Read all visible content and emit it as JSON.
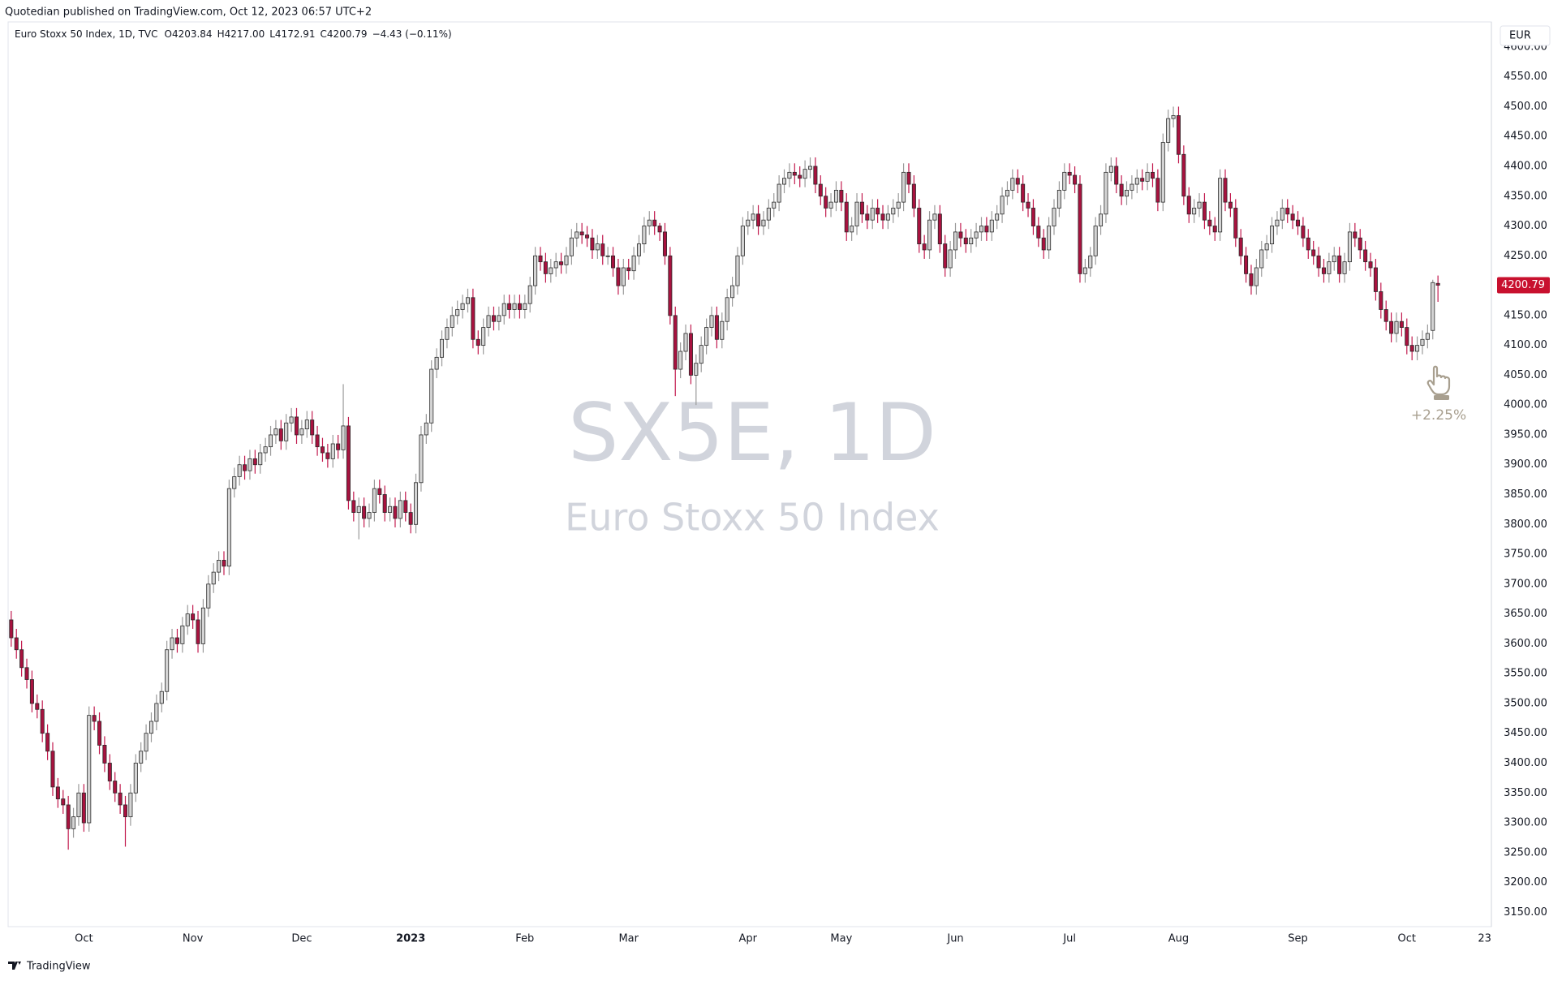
{
  "header": "Quotedian published on TradingView.com, Oct 12, 2023 06:57 UTC+2",
  "footer": "TradingView",
  "chart_data": {
    "type": "candlestick",
    "title": "Euro Stoxx 50 Index, 1D, TVC",
    "ohlc_legend": [
      "O4203.84",
      "H4217.00",
      "L4172.91",
      "C4200.79",
      "−4.43 (−0.11%)"
    ],
    "watermark": [
      "SX5E, 1D",
      "Euro Stoxx 50 Index"
    ],
    "currency": "EUR",
    "last_price": 4200.79,
    "annotation": "+2.25%",
    "up_color": "#d4d4d4",
    "down_color": "#a8123f",
    "border_color": "#2a2a2a",
    "up_wick_color": "#9a9a9a",
    "down_wick_color": "#c21a4e",
    "last_price_color": "#c8102e",
    "grid": false,
    "open": [
      3640,
      3610,
      3590,
      3560,
      3540,
      3500,
      3490,
      3450,
      3420,
      3360,
      3340,
      3330,
      3290,
      3310,
      3350,
      3300,
      3480,
      3470,
      3430,
      3400,
      3370,
      3350,
      3330,
      3310,
      3350,
      3400,
      3420,
      3450,
      3470,
      3500,
      3520,
      3590,
      3610,
      3600,
      3630,
      3650,
      3640,
      3600,
      3660,
      3700,
      3720,
      3740,
      3730,
      3860,
      3880,
      3900,
      3890,
      3910,
      3900,
      3920,
      3930,
      3950,
      3960,
      3940,
      3970,
      3980,
      3950,
      3960,
      3975,
      3950,
      3930,
      3920,
      3910,
      3935,
      3925,
      3965,
      3840,
      3820,
      3830,
      3810,
      3820,
      3860,
      3850,
      3820,
      3830,
      3810,
      3840,
      3820,
      3800,
      3870,
      3950,
      3970,
      4060,
      4080,
      4110,
      4130,
      4150,
      4160,
      4170,
      4180,
      4110,
      4100,
      4130,
      4150,
      4140,
      4150,
      4170,
      4160,
      4170,
      4160,
      4170,
      4200,
      4250,
      4240,
      4220,
      4230,
      4240,
      4235,
      4250,
      4280,
      4290,
      4285,
      4280,
      4260,
      4270,
      4250,
      4250,
      4230,
      4200,
      4230,
      4225,
      4250,
      4270,
      4300,
      4310,
      4300,
      4290,
      4250,
      4150,
      4060,
      4090,
      4120,
      4050,
      4070,
      4100,
      4130,
      4150,
      4110,
      4140,
      4180,
      4200,
      4250,
      4300,
      4310,
      4320,
      4300,
      4310,
      4330,
      4340,
      4370,
      4380,
      4390,
      4385,
      4380,
      4395,
      4400,
      4370,
      4350,
      4330,
      4340,
      4360,
      4340,
      4290,
      4300,
      4340,
      4320,
      4310,
      4330,
      4320,
      4310,
      4320,
      4330,
      4340,
      4390,
      4370,
      4330,
      4270,
      4260,
      4310,
      4320,
      4270,
      4230,
      4260,
      4290,
      4280,
      4270,
      4280,
      4290,
      4300,
      4290,
      4310,
      4320,
      4350,
      4360,
      4380,
      4370,
      4340,
      4330,
      4300,
      4280,
      4260,
      4300,
      4330,
      4360,
      4390,
      4385,
      4370,
      4220,
      4230,
      4250,
      4300,
      4320,
      4390,
      4400,
      4370,
      4350,
      4360,
      4370,
      4380,
      4375,
      4390,
      4380,
      4340,
      4440,
      4480,
      4485,
      4420,
      4350,
      4320,
      4330,
      4340,
      4310,
      4300,
      4290,
      4380,
      4340,
      4330,
      4280,
      4250,
      4220,
      4200,
      4230,
      4260,
      4270,
      4300,
      4310,
      4330,
      4320,
      4310,
      4300,
      4280,
      4260,
      4250,
      4230,
      4220,
      4240,
      4250,
      4220,
      4240,
      4290,
      4280,
      4260,
      4240,
      4230,
      4190,
      4160,
      4140,
      4120,
      4140,
      4130,
      4100,
      4090,
      4100,
      4110,
      4125,
      4203.84
    ],
    "high": [
      3655,
      3625,
      3605,
      3575,
      3555,
      3515,
      3505,
      3465,
      3435,
      3375,
      3355,
      3345,
      3325,
      3365,
      3365,
      3495,
      3495,
      3485,
      3445,
      3415,
      3385,
      3365,
      3345,
      3365,
      3415,
      3435,
      3465,
      3485,
      3515,
      3535,
      3605,
      3625,
      3625,
      3645,
      3665,
      3665,
      3655,
      3675,
      3715,
      3735,
      3755,
      3755,
      3875,
      3895,
      3915,
      3915,
      3925,
      3925,
      3935,
      3945,
      3965,
      3975,
      3975,
      3985,
      3995,
      3995,
      3975,
      3990,
      3990,
      3965,
      3945,
      3935,
      3950,
      3950,
      4035,
      3980,
      3855,
      3845,
      3845,
      3835,
      3875,
      3875,
      3865,
      3845,
      3845,
      3855,
      3855,
      3835,
      3885,
      3965,
      3985,
      4075,
      4095,
      4125,
      4145,
      4165,
      4175,
      4185,
      4195,
      4195,
      4125,
      4145,
      4165,
      4165,
      4165,
      4185,
      4185,
      4185,
      4185,
      4185,
      4215,
      4265,
      4265,
      4255,
      4245,
      4255,
      4255,
      4265,
      4295,
      4305,
      4305,
      4300,
      4295,
      4285,
      4285,
      4265,
      4265,
      4245,
      4245,
      4245,
      4265,
      4285,
      4315,
      4325,
      4325,
      4305,
      4305,
      4265,
      4165,
      4105,
      4135,
      4135,
      4085,
      4115,
      4145,
      4165,
      4165,
      4155,
      4195,
      4215,
      4265,
      4315,
      4325,
      4335,
      4335,
      4325,
      4345,
      4355,
      4385,
      4395,
      4405,
      4405,
      4400,
      4410,
      4415,
      4415,
      4385,
      4365,
      4355,
      4375,
      4375,
      4355,
      4315,
      4355,
      4355,
      4335,
      4345,
      4345,
      4335,
      4335,
      4345,
      4355,
      4405,
      4405,
      4385,
      4345,
      4285,
      4325,
      4335,
      4335,
      4285,
      4275,
      4305,
      4305,
      4295,
      4295,
      4305,
      4315,
      4315,
      4325,
      4335,
      4365,
      4375,
      4395,
      4395,
      4385,
      4355,
      4345,
      4315,
      4295,
      4315,
      4345,
      4375,
      4405,
      4405,
      4400,
      4385,
      4245,
      4265,
      4315,
      4335,
      4405,
      4415,
      4415,
      4385,
      4375,
      4385,
      4395,
      4395,
      4405,
      4405,
      4395,
      4455,
      4495,
      4500,
      4500,
      4435,
      4365,
      4345,
      4355,
      4355,
      4325,
      4315,
      4395,
      4395,
      4355,
      4345,
      4295,
      4265,
      4235,
      4245,
      4275,
      4285,
      4315,
      4325,
      4345,
      4345,
      4335,
      4325,
      4315,
      4295,
      4275,
      4265,
      4245,
      4255,
      4265,
      4265,
      4255,
      4305,
      4305,
      4295,
      4275,
      4255,
      4245,
      4205,
      4175,
      4155,
      4155,
      4155,
      4145,
      4115,
      4115,
      4125,
      4135,
      4210,
      4217
    ],
    "low": [
      3595,
      3575,
      3545,
      3525,
      3485,
      3475,
      3435,
      3405,
      3345,
      3325,
      3315,
      3255,
      3275,
      3295,
      3285,
      3285,
      3455,
      3415,
      3385,
      3355,
      3335,
      3315,
      3260,
      3295,
      3335,
      3385,
      3405,
      3435,
      3455,
      3485,
      3505,
      3575,
      3585,
      3585,
      3615,
      3625,
      3585,
      3585,
      3645,
      3685,
      3705,
      3715,
      3715,
      3845,
      3865,
      3875,
      3875,
      3885,
      3885,
      3905,
      3915,
      3935,
      3925,
      3925,
      3955,
      3935,
      3935,
      3945,
      3935,
      3915,
      3905,
      3895,
      3895,
      3910,
      3910,
      3825,
      3805,
      3775,
      3795,
      3795,
      3805,
      3835,
      3805,
      3805,
      3795,
      3795,
      3805,
      3785,
      3785,
      3855,
      3935,
      3955,
      4045,
      4065,
      4095,
      4115,
      4135,
      4145,
      4155,
      4095,
      4085,
      4085,
      4115,
      4125,
      4125,
      4135,
      4145,
      4145,
      4145,
      4145,
      4155,
      4185,
      4225,
      4205,
      4205,
      4215,
      4220,
      4220,
      4235,
      4265,
      4270,
      4265,
      4245,
      4245,
      4235,
      4235,
      4215,
      4185,
      4185,
      4210,
      4210,
      4235,
      4255,
      4285,
      4285,
      4275,
      4235,
      4135,
      4015,
      4045,
      4075,
      4035,
      4000,
      4055,
      4085,
      4115,
      4095,
      4095,
      4125,
      4165,
      4185,
      4235,
      4285,
      4295,
      4285,
      4285,
      4295,
      4315,
      4325,
      4355,
      4365,
      4370,
      4365,
      4365,
      4380,
      4355,
      4335,
      4315,
      4315,
      4325,
      4325,
      4275,
      4275,
      4285,
      4305,
      4295,
      4295,
      4305,
      4295,
      4295,
      4305,
      4315,
      4325,
      4355,
      4315,
      4255,
      4245,
      4245,
      4295,
      4255,
      4215,
      4215,
      4245,
      4265,
      4255,
      4255,
      4265,
      4275,
      4275,
      4275,
      4295,
      4305,
      4335,
      4345,
      4355,
      4325,
      4315,
      4285,
      4265,
      4245,
      4245,
      4285,
      4315,
      4345,
      4370,
      4355,
      4205,
      4205,
      4215,
      4235,
      4285,
      4305,
      4375,
      4355,
      4335,
      4335,
      4345,
      4355,
      4360,
      4360,
      4365,
      4325,
      4325,
      4425,
      4465,
      4405,
      4335,
      4305,
      4305,
      4315,
      4295,
      4285,
      4275,
      4275,
      4325,
      4315,
      4265,
      4235,
      4205,
      4185,
      4185,
      4215,
      4245,
      4255,
      4285,
      4295,
      4305,
      4295,
      4285,
      4265,
      4245,
      4235,
      4215,
      4205,
      4205,
      4225,
      4205,
      4205,
      4225,
      4265,
      4245,
      4225,
      4215,
      4175,
      4145,
      4125,
      4105,
      4105,
      4115,
      4085,
      4075,
      4075,
      4085,
      4095,
      4110,
      4172.91
    ],
    "close": [
      3610,
      3590,
      3560,
      3540,
      3500,
      3490,
      3450,
      3420,
      3360,
      3340,
      3330,
      3290,
      3310,
      3350,
      3300,
      3480,
      3470,
      3430,
      3400,
      3370,
      3350,
      3330,
      3310,
      3350,
      3400,
      3420,
      3450,
      3470,
      3500,
      3520,
      3590,
      3610,
      3600,
      3630,
      3650,
      3640,
      3600,
      3660,
      3700,
      3720,
      3740,
      3730,
      3860,
      3880,
      3900,
      3890,
      3910,
      3900,
      3920,
      3930,
      3950,
      3960,
      3940,
      3970,
      3980,
      3950,
      3960,
      3975,
      3950,
      3930,
      3920,
      3910,
      3935,
      3925,
      3965,
      3840,
      3820,
      3830,
      3810,
      3820,
      3860,
      3850,
      3820,
      3830,
      3810,
      3840,
      3820,
      3800,
      3870,
      3950,
      3970,
      4060,
      4080,
      4110,
      4130,
      4150,
      4160,
      4170,
      4180,
      4110,
      4100,
      4130,
      4150,
      4140,
      4150,
      4170,
      4160,
      4170,
      4160,
      4170,
      4200,
      4250,
      4240,
      4220,
      4230,
      4240,
      4235,
      4250,
      4280,
      4290,
      4285,
      4280,
      4260,
      4270,
      4250,
      4250,
      4230,
      4200,
      4230,
      4225,
      4250,
      4270,
      4300,
      4310,
      4300,
      4290,
      4250,
      4150,
      4060,
      4090,
      4120,
      4050,
      4070,
      4100,
      4130,
      4150,
      4110,
      4140,
      4180,
      4200,
      4250,
      4300,
      4310,
      4320,
      4300,
      4310,
      4330,
      4340,
      4370,
      4380,
      4390,
      4385,
      4380,
      4395,
      4400,
      4370,
      4350,
      4330,
      4340,
      4360,
      4340,
      4290,
      4300,
      4340,
      4320,
      4310,
      4330,
      4320,
      4310,
      4320,
      4330,
      4340,
      4390,
      4370,
      4330,
      4270,
      4260,
      4310,
      4320,
      4270,
      4230,
      4260,
      4290,
      4280,
      4270,
      4280,
      4290,
      4300,
      4290,
      4310,
      4320,
      4350,
      4360,
      4380,
      4370,
      4340,
      4330,
      4300,
      4280,
      4260,
      4300,
      4330,
      4360,
      4390,
      4385,
      4370,
      4220,
      4230,
      4250,
      4300,
      4320,
      4390,
      4400,
      4370,
      4350,
      4360,
      4370,
      4380,
      4375,
      4390,
      4380,
      4340,
      4440,
      4480,
      4485,
      4420,
      4350,
      4320,
      4330,
      4340,
      4310,
      4300,
      4290,
      4380,
      4340,
      4330,
      4280,
      4250,
      4220,
      4200,
      4230,
      4260,
      4270,
      4300,
      4310,
      4330,
      4320,
      4310,
      4300,
      4280,
      4260,
      4250,
      4230,
      4220,
      4240,
      4250,
      4220,
      4240,
      4290,
      4280,
      4260,
      4240,
      4230,
      4190,
      4160,
      4140,
      4120,
      4140,
      4130,
      4100,
      4090,
      4100,
      4110,
      4120,
      4205.22,
      4200.79
    ],
    "xlim": [
      -0.6,
      285.3
    ],
    "xticks": [
      {
        "value": 14,
        "label": "Oct"
      },
      {
        "value": 35,
        "label": "Nov"
      },
      {
        "value": 56,
        "label": "Dec"
      },
      {
        "value": 77,
        "label": "2023"
      },
      {
        "value": 99,
        "label": "Feb"
      },
      {
        "value": 119,
        "label": "Mar"
      },
      {
        "value": 142,
        "label": "Apr"
      },
      {
        "value": 160,
        "label": "May"
      },
      {
        "value": 182,
        "label": "Jun"
      },
      {
        "value": 204,
        "label": "Jul"
      },
      {
        "value": 225,
        "label": "Aug"
      },
      {
        "value": 248,
        "label": "Sep"
      },
      {
        "value": 269,
        "label": "Oct"
      },
      {
        "value": 284,
        "label": "23"
      }
    ],
    "ylim": [
      3126,
      4642
    ],
    "yticks": [
      {
        "value": 3150,
        "label": "3150.00"
      },
      {
        "value": 3200,
        "label": "3200.00"
      },
      {
        "value": 3250,
        "label": "3250.00"
      },
      {
        "value": 3300,
        "label": "3300.00"
      },
      {
        "value": 3350,
        "label": "3350.00"
      },
      {
        "value": 3400,
        "label": "3400.00"
      },
      {
        "value": 3450,
        "label": "3450.00"
      },
      {
        "value": 3500,
        "label": "3500.00"
      },
      {
        "value": 3550,
        "label": "3550.00"
      },
      {
        "value": 3600,
        "label": "3600.00"
      },
      {
        "value": 3650,
        "label": "3650.00"
      },
      {
        "value": 3700,
        "label": "3700.00"
      },
      {
        "value": 3750,
        "label": "3750.00"
      },
      {
        "value": 3800,
        "label": "3800.00"
      },
      {
        "value": 3850,
        "label": "3850.00"
      },
      {
        "value": 3900,
        "label": "3900.00"
      },
      {
        "value": 3950,
        "label": "3950.00"
      },
      {
        "value": 4000,
        "label": "4000.00"
      },
      {
        "value": 4050,
        "label": "4050.00"
      },
      {
        "value": 4100,
        "label": "4100.00"
      },
      {
        "value": 4150,
        "label": "4150.00"
      },
      {
        "value": 4200,
        "label": "4200.00"
      },
      {
        "value": 4250,
        "label": "4250.00"
      },
      {
        "value": 4300,
        "label": "4300.00"
      },
      {
        "value": 4350,
        "label": "4350.00"
      },
      {
        "value": 4400,
        "label": "4400.00"
      },
      {
        "value": 4450,
        "label": "4450.00"
      },
      {
        "value": 4500,
        "label": "4500.00"
      },
      {
        "value": 4550,
        "label": "4550.00"
      },
      {
        "value": 4600,
        "label": "4600.00"
      }
    ]
  }
}
